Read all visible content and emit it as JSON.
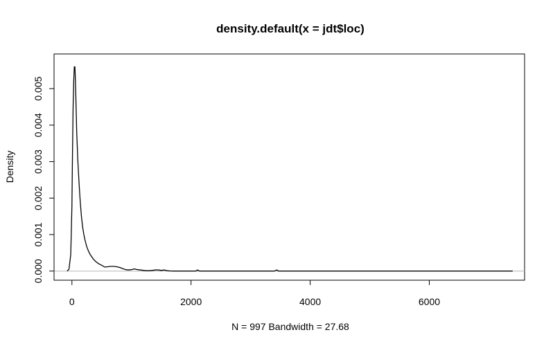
{
  "chart_data": {
    "type": "line",
    "title": "density.default(x = jdt$loc)",
    "xlabel": "N = 997   Bandwidth = 27.68",
    "ylabel": "Density",
    "xlim": [
      -300,
      7600
    ],
    "ylim": [
      -0.00025,
      0.00595
    ],
    "x_ticks": [
      {
        "value": 0,
        "label": "0"
      },
      {
        "value": 2000,
        "label": "2000"
      },
      {
        "value": 4000,
        "label": "4000"
      },
      {
        "value": 6000,
        "label": "6000"
      }
    ],
    "y_ticks": [
      {
        "value": 0,
        "label": "0.000"
      },
      {
        "value": 0.001,
        "label": "0.001"
      },
      {
        "value": 0.002,
        "label": "0.002"
      },
      {
        "value": 0.003,
        "label": "0.003"
      },
      {
        "value": 0.004,
        "label": "0.004"
      },
      {
        "value": 0.005,
        "label": "0.005"
      }
    ],
    "baseline": 0,
    "grid": false,
    "series": [
      {
        "x": [
          -80,
          -50,
          -20,
          0,
          10,
          20,
          30,
          40,
          50,
          60,
          70,
          80,
          100,
          120,
          140,
          160,
          180,
          200,
          220,
          240,
          260,
          280,
          300,
          330,
          360,
          400,
          450,
          500,
          550,
          600,
          650,
          700,
          750,
          800,
          850,
          900,
          950,
          1000,
          1050,
          1100,
          1150,
          1200,
          1250,
          1300,
          1350,
          1400,
          1450,
          1500,
          1550,
          1600,
          1650,
          1700,
          1800,
          2000,
          2080,
          2110,
          2140,
          2200,
          2500,
          3000,
          3400,
          3440,
          3470,
          3500,
          4000,
          5000,
          6000,
          7000,
          7400
        ],
        "y": [
          0,
          5e-05,
          0.00045,
          0.0018,
          0.0032,
          0.0045,
          0.0052,
          0.0056,
          0.0056,
          0.0052,
          0.0045,
          0.0038,
          0.003,
          0.0024,
          0.0019,
          0.0015,
          0.0012,
          0.001,
          0.00085,
          0.00072,
          0.00062,
          0.00054,
          0.00047,
          0.0004,
          0.00033,
          0.00026,
          0.0002,
          0.00016,
          0.00011,
          0.00012,
          0.00013,
          0.00013,
          0.00012,
          0.0001,
          7e-05,
          4e-05,
          3e-05,
          4e-05,
          6e-05,
          4e-05,
          3e-05,
          2e-05,
          1e-05,
          1e-05,
          2e-05,
          3e-05,
          3e-05,
          2e-05,
          3e-05,
          1e-05,
          5e-06,
          0,
          0,
          0,
          0,
          3e-05,
          0,
          0,
          0,
          0,
          0,
          3e-05,
          0,
          0,
          0,
          0,
          0,
          0,
          0
        ]
      }
    ]
  }
}
